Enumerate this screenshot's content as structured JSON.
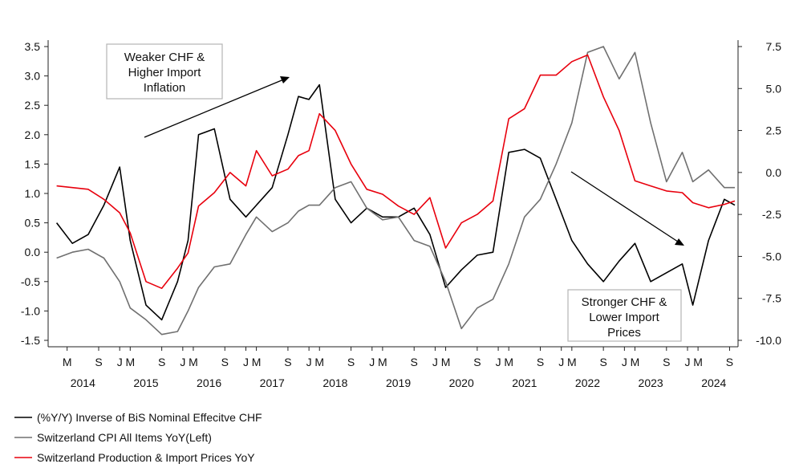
{
  "chart_data": {
    "type": "line",
    "title": "",
    "xlabel": "",
    "y_left_range": [
      -1.5,
      3.5
    ],
    "y_left_ticks": [
      "3.5",
      "3.0",
      "2.5",
      "2.0",
      "1.5",
      "1.0",
      "0.5",
      "0.0",
      "-0.5",
      "-1.0",
      "-1.5"
    ],
    "y_right_range": [
      -10,
      7.5
    ],
    "y_right_ticks": [
      "7.5",
      "5.0",
      "2.5",
      "0.0",
      "-2.5",
      "-5.0",
      "-7.5",
      "-10.0"
    ],
    "x_month_labels": [
      "M",
      "S",
      "J",
      "M",
      "S",
      "J",
      "M",
      "S",
      "J",
      "M",
      "S",
      "J",
      "M",
      "S",
      "J",
      "M",
      "S",
      "J",
      "M",
      "S",
      "J",
      "M",
      "S",
      "J",
      "M",
      "S",
      "J",
      "M",
      "S",
      "J",
      "M",
      "S"
    ],
    "x_year_labels": [
      "2014",
      "2015",
      "2016",
      "2017",
      "2018",
      "2019",
      "2020",
      "2021",
      "2022",
      "2023",
      "2024"
    ],
    "series": [
      {
        "name": "(%Y/Y) Inverse of BiS Nominal Effecitve CHF",
        "color": "#000000",
        "axis": "left",
        "x": [
          "2014-01",
          "2014-04",
          "2014-07",
          "2014-10",
          "2015-01",
          "2015-03",
          "2015-06",
          "2015-09",
          "2015-12",
          "2016-02",
          "2016-04",
          "2016-07",
          "2016-10",
          "2017-01",
          "2017-03",
          "2017-06",
          "2017-09",
          "2017-11",
          "2018-01",
          "2018-03",
          "2018-06",
          "2018-09",
          "2018-12",
          "2019-03",
          "2019-06",
          "2019-09",
          "2019-12",
          "2020-03",
          "2020-06",
          "2020-09",
          "2020-12",
          "2021-03",
          "2021-06",
          "2021-09",
          "2021-12",
          "2022-03",
          "2022-06",
          "2022-09",
          "2022-12",
          "2023-03",
          "2023-06",
          "2023-09",
          "2023-12",
          "2024-02",
          "2024-05",
          "2024-08",
          "2024-10"
        ],
        "values": [
          0.5,
          0.15,
          0.3,
          0.8,
          1.45,
          0.2,
          -0.9,
          -1.15,
          -0.5,
          0.2,
          2.0,
          2.1,
          0.9,
          0.6,
          0.8,
          1.1,
          2.0,
          2.65,
          2.6,
          2.85,
          0.9,
          0.5,
          0.75,
          0.6,
          0.6,
          0.75,
          0.3,
          -0.6,
          -0.3,
          -0.05,
          0.0,
          1.7,
          1.75,
          1.6,
          0.9,
          0.2,
          -0.2,
          -0.5,
          -0.15,
          0.15,
          -0.5,
          -0.35,
          -0.2,
          -0.9,
          0.2,
          0.9,
          0.8
        ]
      },
      {
        "name": "Switzerland CPI All Items YoY(Left)",
        "color": "#707070",
        "axis": "left",
        "x": [
          "2014-01",
          "2014-04",
          "2014-07",
          "2014-10",
          "2015-01",
          "2015-03",
          "2015-06",
          "2015-09",
          "2015-12",
          "2016-02",
          "2016-04",
          "2016-07",
          "2016-10",
          "2017-01",
          "2017-03",
          "2017-06",
          "2017-09",
          "2017-11",
          "2018-01",
          "2018-03",
          "2018-06",
          "2018-09",
          "2018-12",
          "2019-03",
          "2019-06",
          "2019-09",
          "2019-12",
          "2020-03",
          "2020-06",
          "2020-09",
          "2020-12",
          "2021-03",
          "2021-06",
          "2021-09",
          "2021-12",
          "2022-03",
          "2022-06",
          "2022-09",
          "2022-12",
          "2023-03",
          "2023-06",
          "2023-09",
          "2023-12",
          "2024-02",
          "2024-05",
          "2024-08",
          "2024-10"
        ],
        "values": [
          -0.1,
          0.0,
          0.05,
          -0.1,
          -0.5,
          -0.95,
          -1.15,
          -1.4,
          -1.35,
          -1.0,
          -0.6,
          -0.25,
          -0.2,
          0.3,
          0.6,
          0.35,
          0.5,
          0.7,
          0.8,
          0.8,
          1.1,
          1.2,
          0.75,
          0.55,
          0.6,
          0.2,
          0.1,
          -0.5,
          -1.3,
          -0.95,
          -0.8,
          -0.2,
          0.6,
          0.9,
          1.5,
          2.2,
          3.4,
          3.5,
          2.95,
          3.4,
          2.2,
          1.2,
          1.7,
          1.2,
          1.4,
          1.1,
          1.1
        ]
      },
      {
        "name": "Switzerland Production & Import Prices YoY",
        "color": "#e8000d",
        "axis": "right",
        "x": [
          "2014-01",
          "2014-04",
          "2014-07",
          "2014-10",
          "2015-01",
          "2015-03",
          "2015-06",
          "2015-09",
          "2015-12",
          "2016-02",
          "2016-04",
          "2016-07",
          "2016-10",
          "2017-01",
          "2017-03",
          "2017-06",
          "2017-09",
          "2017-11",
          "2018-01",
          "2018-03",
          "2018-06",
          "2018-09",
          "2018-12",
          "2019-03",
          "2019-06",
          "2019-09",
          "2019-12",
          "2020-03",
          "2020-06",
          "2020-09",
          "2020-12",
          "2021-03",
          "2021-06",
          "2021-09",
          "2021-12",
          "2022-03",
          "2022-06",
          "2022-09",
          "2022-12",
          "2023-03",
          "2023-06",
          "2023-09",
          "2023-12",
          "2024-02",
          "2024-05",
          "2024-08",
          "2024-10"
        ],
        "values": [
          -0.8,
          -0.9,
          -1.0,
          -1.6,
          -2.4,
          -3.6,
          -6.5,
          -6.9,
          -5.7,
          -4.8,
          -2.0,
          -1.2,
          0.0,
          -0.8,
          1.3,
          -0.2,
          0.2,
          1.0,
          1.3,
          3.5,
          2.5,
          0.5,
          -1.0,
          -1.3,
          -2.0,
          -2.5,
          -1.5,
          -4.5,
          -3.0,
          -2.5,
          -1.7,
          3.2,
          3.8,
          5.8,
          5.8,
          6.6,
          7.0,
          4.5,
          2.5,
          -0.5,
          -0.8,
          -1.1,
          -1.2,
          -1.8,
          -2.1,
          -1.9,
          -1.7
        ]
      }
    ],
    "annotations": [
      {
        "lines": [
          "Weaker CHF &",
          "Higher Import",
          "Inflation"
        ]
      },
      {
        "lines": [
          "Stronger CHF &",
          "Lower Import",
          "Prices"
        ]
      }
    ],
    "legend_position": "bottom-left",
    "grid": false
  }
}
